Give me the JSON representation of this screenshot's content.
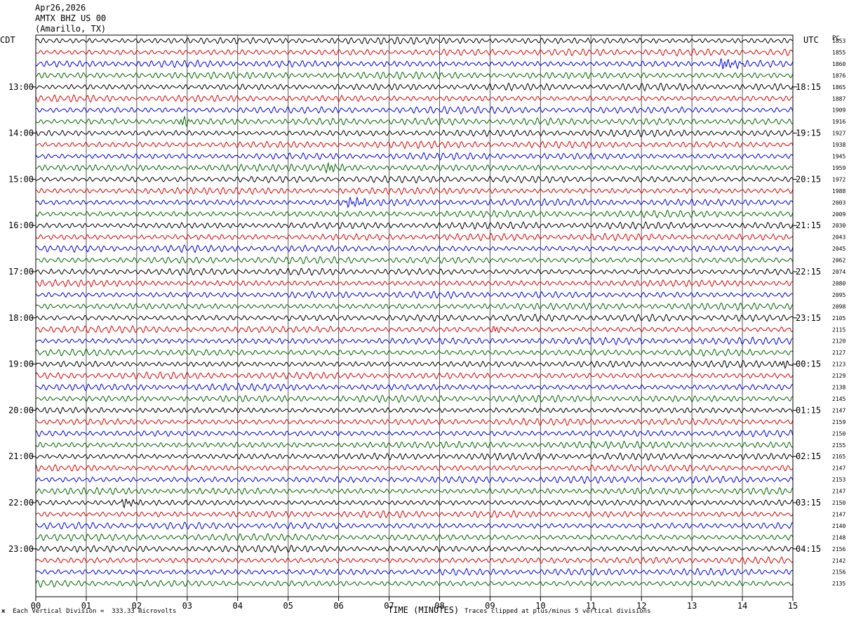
{
  "header": {
    "date": "Apr26,2026",
    "station": "AMTX BHZ US 00",
    "location": "(Amarillo, TX)"
  },
  "labels": {
    "left_tz": "CDT",
    "right_tz": "UTC",
    "right_col": "PC"
  },
  "footer": {
    "division": "Each Vertical Division =  333.33 microvolts",
    "clip": "Traces clipped at plus/minus 5 vertical divisions",
    "mark": "ж"
  },
  "chart_data": {
    "type": "line",
    "xlabel": "TIME (MINUTES)",
    "x_ticks": [
      "00",
      "01",
      "02",
      "03",
      "04",
      "05",
      "06",
      "07",
      "08",
      "09",
      "10",
      "11",
      "12",
      "13",
      "14",
      "15"
    ],
    "xlim": [
      0,
      15
    ],
    "trace_colors": [
      "#000000",
      "#dd0000",
      "#0000dd",
      "#006600"
    ],
    "left_hour_labels": [
      "13:00",
      "14:00",
      "15:00",
      "16:00",
      "17:00",
      "18:00",
      "19:00",
      "20:00",
      "21:00",
      "22:00",
      "23:00"
    ],
    "right_hour_labels": [
      "18:15",
      "19:15",
      "20:15",
      "21:15",
      "22:15",
      "23:15",
      "00:15",
      "01:15",
      "02:15",
      "03:15",
      "04:15"
    ],
    "trace_values": [
      "1853",
      "1855",
      "1860",
      "1876",
      "1865",
      "1887",
      "1909",
      "1916",
      "1927",
      "1938",
      "1945",
      "1959",
      "1972",
      "1988",
      "2003",
      "2009",
      "2030",
      "2043",
      "2045",
      "2062",
      "2074",
      "2080",
      "2095",
      "2098",
      "2105",
      "2115",
      "2120",
      "2127",
      "2123",
      "2129",
      "2138",
      "2145",
      "2147",
      "2159",
      "2150",
      "2155",
      "2165",
      "2147",
      "2153",
      "2147",
      "2150",
      "2147",
      "2140",
      "2148",
      "2156",
      "2142",
      "2156",
      "2135"
    ],
    "events": [
      {
        "row": 2,
        "minute": 13.6,
        "amp": 1.8
      },
      {
        "row": 7,
        "minute": 2.9,
        "amp": 1.1
      },
      {
        "row": 11,
        "minute": 5.8,
        "amp": 1.3
      },
      {
        "row": 14,
        "minute": 6.2,
        "amp": 1.6
      },
      {
        "row": 40,
        "minute": 1.75,
        "amp": 1.3
      },
      {
        "row": 25,
        "minute": 9.1,
        "amp": 0.9
      },
      {
        "row": 28,
        "minute": 14.8,
        "amp": 0.9
      }
    ]
  }
}
